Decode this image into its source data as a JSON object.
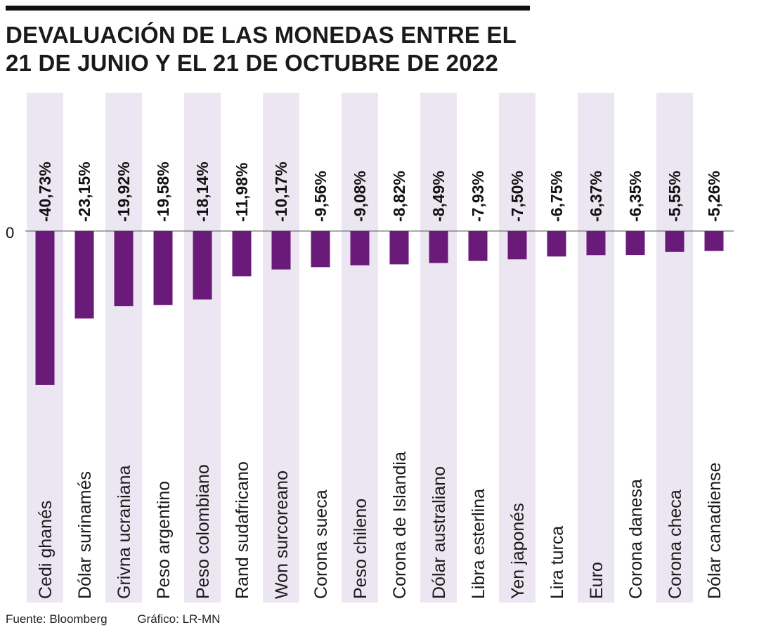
{
  "title": "DEVALUACIÓN DE LAS MONEDAS ENTRE EL 21 DE JUNIO Y EL 21 DE OCTUBRE DE 2022",
  "footer": {
    "source": "Fuente: Bloomberg",
    "credit": "Gráfico: LR-MN"
  },
  "colors": {
    "bar": "#6a1a78",
    "band": "#ece6f2",
    "text": "#111111"
  },
  "chart_data": {
    "type": "bar",
    "title": "DEVALUACIÓN DE LAS MONEDAS ENTRE EL 21 DE JUNIO Y EL 21 DE OCTUBRE DE 2022",
    "xlabel": "",
    "ylabel": "",
    "y_ticks": [
      "0"
    ],
    "ylim": [
      -41,
      0
    ],
    "categories": [
      "Cedi ghanés",
      "Dólar surinamés",
      "Grivna ucraniana",
      "Peso argentino",
      "Peso colombiano",
      "Rand sudafricano",
      "Won surcoreano",
      "Corona sueca",
      "Peso chileno",
      "Corona de Islandia",
      "Dólar australiano",
      "Libra esterlina",
      "Yen japonés",
      "Lira turca",
      "Euro",
      "Corona danesa",
      "Corona checa",
      "Dólar canadiense"
    ],
    "values": [
      -40.73,
      -23.15,
      -19.92,
      -19.58,
      -18.14,
      -11.98,
      -10.17,
      -9.56,
      -9.08,
      -8.82,
      -8.49,
      -7.93,
      -7.5,
      -6.75,
      -6.37,
      -6.35,
      -5.55,
      -5.26
    ],
    "labels": [
      "-40,73%",
      "-23,15%",
      "-19,92%",
      "-19,58%",
      "-18,14%",
      "-11,98%",
      "-10,17%",
      "-9,56%",
      "-9,08%",
      "-8,82%",
      "-8,49%",
      "-7,93%",
      "-7,50%",
      "-6,75%",
      "-6,37%",
      "-6,35%",
      "-5,55%",
      "-5,26%"
    ]
  }
}
